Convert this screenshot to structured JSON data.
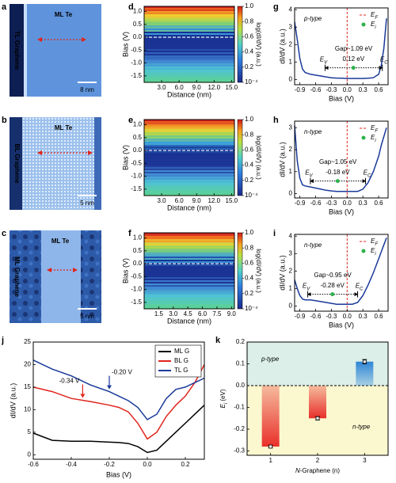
{
  "images": [
    {
      "panel": "a",
      "film": "ML Te",
      "substrate": "TL Graphene",
      "scale": "8 nm"
    },
    {
      "panel": "b",
      "film": "ML Te",
      "substrate": "BL Graphene",
      "scale": "5 nm"
    },
    {
      "panel": "c",
      "film": "ML Te",
      "substrate": "ML Graphene",
      "scale": "5 nm"
    }
  ],
  "chart_data": [
    {
      "panel": "d",
      "type": "heatmap",
      "xlabel": "Distance (nm)",
      "ylabel": "Bias (V)",
      "colorbar_label": "log(dI/dV) (a.u.)",
      "xlim": [
        0,
        15.5
      ],
      "xticks": [
        {
          "value": 3,
          "label": "3.0"
        },
        {
          "value": 6,
          "label": "6.0"
        },
        {
          "value": 9,
          "label": "9.0"
        },
        {
          "value": 12,
          "label": "12.0"
        },
        {
          "value": 15,
          "label": "15.0"
        }
      ],
      "ylim": [
        -1.75,
        1.2
      ],
      "yticks": [
        -1.5,
        {
          "value": -1,
          "label": "-1.0"
        },
        -0.5,
        {
          "value": 0,
          "label": "0.0"
        },
        0.5,
        {
          "value": 1,
          "label": "1.0"
        }
      ],
      "clim": [
        0.0001,
        1
      ],
      "cticks": [
        {
          "value": 1,
          "label": "1.0"
        },
        0.8,
        0.6,
        0.4,
        0.2,
        {
          "value": 0.0001,
          "label": "10⁻⁴"
        }
      ],
      "fermi_level": 0
    },
    {
      "panel": "e",
      "type": "heatmap",
      "xlabel": "Distance (nm)",
      "ylabel": "Bias (V)",
      "colorbar_label": "log(dI/dV) (a.u.)",
      "xlim": [
        0,
        15.5
      ],
      "xticks": [
        {
          "value": 3,
          "label": "3.0"
        },
        {
          "value": 6,
          "label": "6.0"
        },
        {
          "value": 9,
          "label": "9.0"
        },
        {
          "value": 12,
          "label": "12.0"
        },
        {
          "value": 15,
          "label": "15.0"
        }
      ],
      "ylim": [
        -1.75,
        1.2
      ],
      "yticks": [
        -1.5,
        {
          "value": -1,
          "label": "-1.0"
        },
        -0.5,
        {
          "value": 0,
          "label": "0.0"
        },
        0.5,
        {
          "value": 1,
          "label": "1.0"
        }
      ],
      "clim": [
        0.0001,
        1
      ],
      "cticks": [
        {
          "value": 1,
          "label": "1.0"
        },
        0.8,
        0.6,
        0.4,
        0.2,
        {
          "value": 0.0001,
          "label": "10⁻⁴"
        }
      ],
      "fermi_level": 0
    },
    {
      "panel": "f",
      "type": "heatmap",
      "xlabel": "Distance (nm)",
      "ylabel": "Bias (V)",
      "colorbar_label": "log(dI/dV) (a.u.)",
      "xlim": [
        0,
        9.3
      ],
      "xticks": [
        1.5,
        {
          "value": 3,
          "label": "3.0"
        },
        4.5,
        {
          "value": 6,
          "label": "6.0"
        },
        7.5,
        {
          "value": 9,
          "label": "9.0"
        }
      ],
      "ylim": [
        -1.75,
        1.2
      ],
      "yticks": [
        -1.5,
        {
          "value": -1,
          "label": "-1.0"
        },
        -0.5,
        {
          "value": 0,
          "label": "0.0"
        },
        0.5,
        {
          "value": 1,
          "label": "1.0"
        }
      ],
      "clim": [
        0.0001,
        1
      ],
      "cticks": [
        {
          "value": 1,
          "label": "1.0"
        },
        0.8,
        0.6,
        0.4,
        0.2,
        {
          "value": 0.0001,
          "label": "10⁻⁴"
        }
      ],
      "fermi_level": 0
    },
    {
      "panel": "g",
      "type": "gap",
      "xlabel": "Bias (V)",
      "ylabel": "dI/dV (a.u.)",
      "doping": "p-type",
      "accent": "#29a3d8",
      "color": "#1a3a9a",
      "x": [
        -1.0,
        -0.95,
        -0.9,
        -0.85,
        -0.8,
        -0.7,
        -0.6,
        -0.5,
        -0.4,
        -0.3,
        -0.2,
        -0.1,
        0,
        0.1,
        0.2,
        0.3,
        0.4,
        0.5,
        0.6,
        0.65,
        0.7,
        0.75
      ],
      "values": [
        3.3,
        2.3,
        1.2,
        0.6,
        0.4,
        0.3,
        0.25,
        0.2,
        0.15,
        0.1,
        0.08,
        0.07,
        0.06,
        0.06,
        0.06,
        0.06,
        0.07,
        0.1,
        0.3,
        0.8,
        1.8,
        3.5
      ],
      "xlim": [
        -1.0,
        0.78
      ],
      "xticks": [
        -0.9,
        -0.6,
        -0.3,
        {
          "value": 0,
          "label": "0.0"
        },
        0.3,
        0.6
      ],
      "ylim": [
        -0.3,
        4.1
      ],
      "yticks": [
        0,
        1,
        2,
        3,
        4
      ],
      "legend": [
        {
          "text": "E",
          "sub": "F"
        },
        {
          "text": "E",
          "sub": "i"
        }
      ],
      "ef": 0,
      "ei": 0.12,
      "ev": -0.42,
      "ec": 0.67,
      "gap_label": "Gap~1.09 eV",
      "ei_label": "0.12 eV",
      "ev_label": {
        "text": "E",
        "sub": "V"
      },
      "ec_label": {
        "text": "E",
        "sub": "C"
      }
    },
    {
      "panel": "h",
      "type": "gap",
      "xlabel": "Bias (V)",
      "ylabel": "dI/dV (a.u.)",
      "doping": "n-type",
      "accent": "#e0241c",
      "color": "#1a3a9a",
      "x": [
        -1.0,
        -0.95,
        -0.9,
        -0.85,
        -0.8,
        -0.7,
        -0.6,
        -0.5,
        -0.4,
        -0.3,
        -0.2,
        -0.1,
        0,
        0.1,
        0.2,
        0.3,
        0.4,
        0.5,
        0.6,
        0.65,
        0.7,
        0.75
      ],
      "values": [
        3.1,
        1.5,
        0.7,
        0.4,
        0.35,
        0.3,
        0.25,
        0.2,
        0.15,
        0.12,
        0.1,
        0.1,
        0.1,
        0.1,
        0.1,
        0.2,
        0.5,
        1.0,
        1.7,
        2.2,
        2.6,
        3.0
      ],
      "xlim": [
        -1.0,
        0.78
      ],
      "xticks": [
        -0.9,
        -0.6,
        -0.3,
        {
          "value": 0,
          "label": "0.0"
        },
        0.3,
        0.6
      ],
      "ylim": [
        -0.2,
        3.3
      ],
      "yticks": [
        0,
        1,
        2,
        3
      ],
      "legend": [
        {
          "text": "E",
          "sub": "F"
        },
        {
          "text": "E",
          "sub": "i"
        }
      ],
      "ef": 0,
      "ei": -0.18,
      "ev": -0.7,
      "ec": 0.35,
      "gap_label": "Gap~1.05 eV",
      "ei_label": "-0.18 eV",
      "ev_label": {
        "text": "E",
        "sub": "V"
      },
      "ec_label": {
        "text": "E",
        "sub": "C"
      }
    },
    {
      "panel": "i",
      "type": "gap",
      "xlabel": "Bias (V)",
      "ylabel": "dI/dV (a.u.)",
      "doping": "n-type",
      "accent": "#e0241c",
      "color": "#1a3a9a",
      "x": [
        -1.0,
        -0.95,
        -0.9,
        -0.85,
        -0.8,
        -0.7,
        -0.6,
        -0.5,
        -0.4,
        -0.3,
        -0.2,
        -0.1,
        0,
        0.1,
        0.2,
        0.3,
        0.4,
        0.5,
        0.6,
        0.65,
        0.7,
        0.75
      ],
      "values": [
        1.5,
        1.0,
        0.6,
        0.4,
        0.35,
        0.35,
        0.3,
        0.25,
        0.2,
        0.15,
        0.1,
        0.1,
        0.1,
        0.1,
        0.2,
        0.6,
        1.2,
        1.9,
        2.7,
        3.1,
        3.5,
        3.9
      ],
      "xlim": [
        -1.0,
        0.78
      ],
      "xticks": [
        -0.9,
        -0.6,
        -0.3,
        {
          "value": 0,
          "label": "0.0"
        },
        0.3,
        0.6
      ],
      "ylim": [
        -0.3,
        4.1
      ],
      "yticks": [
        0,
        1,
        2,
        3,
        4
      ],
      "legend": [
        {
          "text": "E",
          "sub": "F"
        },
        {
          "text": "E",
          "sub": "i"
        }
      ],
      "ef": 0,
      "ei": -0.28,
      "ev": -0.75,
      "ec": 0.2,
      "gap_label": "Gap~0.95 eV",
      "ei_label": "-0.28 eV",
      "ev_label": {
        "text": "E",
        "sub": "V"
      },
      "ec_label": {
        "text": "E",
        "sub": "C"
      }
    },
    {
      "panel": "j",
      "type": "line",
      "xlabel": "Bias (V)",
      "ylabel": "dI/dV (a.u.)",
      "x": [
        -0.6,
        -0.5,
        -0.4,
        -0.3,
        -0.2,
        -0.15,
        -0.1,
        -0.05,
        0,
        0.05,
        0.1,
        0.15,
        0.2,
        0.25,
        0.3
      ],
      "series": [
        {
          "name": "ML G",
          "color": "#000000",
          "values": [
            4.8,
            3.2,
            3.0,
            3.0,
            2.8,
            2.7,
            2.5,
            1.8,
            0.5,
            1.0,
            3,
            5,
            7,
            9,
            11
          ]
        },
        {
          "name": "BL G",
          "color": "#e0241c",
          "values": [
            15,
            14,
            12.5,
            11.8,
            11,
            10.5,
            9.5,
            7,
            3.5,
            5,
            8.5,
            11,
            13,
            16,
            20
          ]
        },
        {
          "name": "TL G",
          "color": "#1a3a9a",
          "values": [
            21,
            19,
            17.5,
            15.5,
            14,
            13,
            12,
            10.5,
            7.8,
            9,
            12.5,
            14.5,
            15,
            16,
            17
          ]
        }
      ],
      "xlim": [
        -0.6,
        0.3
      ],
      "xticks": [
        -0.6,
        -0.4,
        -0.2,
        {
          "value": 0,
          "label": "0.0"
        },
        0.2
      ],
      "ylim": [
        -1,
        25
      ],
      "yticks": [
        0,
        5,
        10,
        15,
        20,
        25
      ],
      "annotations": [
        {
          "x": -0.34,
          "label": "-0.34 V",
          "color": "#e0241c"
        },
        {
          "x": -0.2,
          "label": "-0.20 V",
          "color": "#1a3a9a"
        }
      ]
    },
    {
      "panel": "k",
      "type": "bar",
      "xlabel": {
        "text": "N",
        "suffix": "-Graphene (n)"
      },
      "ylabel": {
        "text": "E",
        "sub": "i",
        "suffix": " (eV)"
      },
      "x": [
        1,
        2,
        3
      ],
      "values": [
        -0.28,
        -0.15,
        0.11
      ],
      "errors": [
        0.005,
        0.008,
        0.01
      ],
      "colors": [
        "#e8302a",
        "#e8302a",
        "#2f86d6"
      ],
      "xlim": [
        0.5,
        3.5
      ],
      "xticks": [
        1,
        2,
        3
      ],
      "ylim": [
        -0.32,
        0.2
      ],
      "yticks": [
        -0.3,
        -0.2,
        -0.1,
        {
          "value": 0,
          "label": "0.0"
        },
        0.1,
        0.2
      ],
      "baseline": 0,
      "regions": [
        {
          "label": "p-type",
          "color": "#dcefe8",
          "text_color": "#29a3d8"
        },
        {
          "label": "n-type",
          "color": "#fbf7cf",
          "text_color": "#e0241c"
        }
      ]
    }
  ]
}
